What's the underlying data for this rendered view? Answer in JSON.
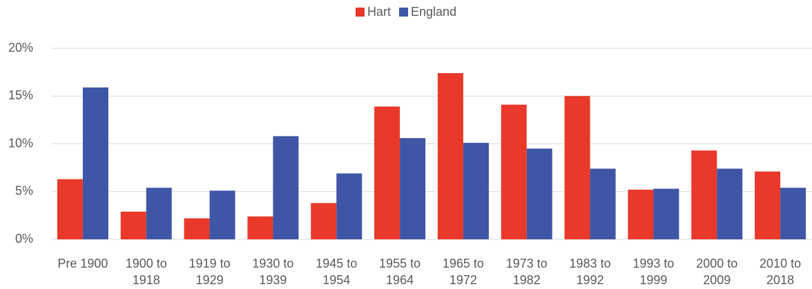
{
  "chart_data": {
    "type": "bar",
    "categories": [
      "Pre 1900",
      "1900 to 1918",
      "1919 to 1929",
      "1930 to 1939",
      "1945 to 1954",
      "1955 to 1964",
      "1965 to 1972",
      "1973 to 1982",
      "1983 to 1992",
      "1993 to 1999",
      "2000 to 2009",
      "2010 to 2018"
    ],
    "series": [
      {
        "name": "Hart",
        "color": "#e8392a",
        "values": [
          6.3,
          2.9,
          2.2,
          2.4,
          3.8,
          13.9,
          17.4,
          14.1,
          15.0,
          5.2,
          9.3,
          7.1
        ]
      },
      {
        "name": "England",
        "color": "#3f56a6",
        "values": [
          15.9,
          5.4,
          5.1,
          10.8,
          6.9,
          10.6,
          10.1,
          9.5,
          7.4,
          5.3,
          7.4,
          5.4
        ]
      }
    ],
    "ylim": [
      0,
      20
    ],
    "yticks": [
      {
        "value": 0,
        "label": "0%"
      },
      {
        "value": 5,
        "label": "5%"
      },
      {
        "value": 10,
        "label": "10%"
      },
      {
        "value": 15,
        "label": "15%"
      },
      {
        "value": 20,
        "label": "20%"
      }
    ],
    "grid": true,
    "legend": "top"
  }
}
